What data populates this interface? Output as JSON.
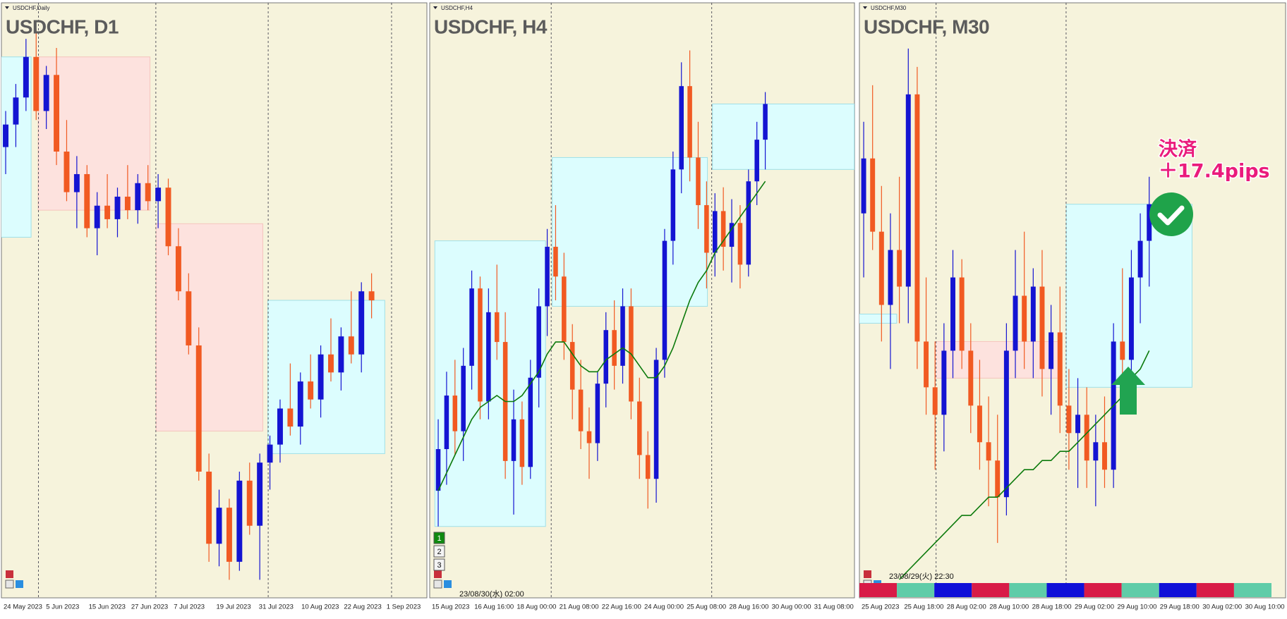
{
  "panels": [
    {
      "symbol": "USDCHF,Daily",
      "title": "USDCHF, D1",
      "ylim": [
        0.852,
        0.918
      ],
      "x_labels": [
        "24 May 2023",
        "5 Jun 2023",
        "15 Jun 2023",
        "27 Jun 2023",
        "7 Jul 2023",
        "19 Jul 2023",
        "31 Jul 2023",
        "10 Aug 2023",
        "22 Aug 2023",
        "1 Sep 2023"
      ],
      "candles": [
        [
          0.902,
          0.906,
          0.899,
          0.9045
        ],
        [
          0.9045,
          0.909,
          0.902,
          0.9075
        ],
        [
          0.9075,
          0.914,
          0.906,
          0.912
        ],
        [
          0.912,
          0.915,
          0.905,
          0.906
        ],
        [
          0.906,
          0.911,
          0.904,
          0.91
        ],
        [
          0.91,
          0.913,
          0.9,
          0.9015
        ],
        [
          0.9015,
          0.905,
          0.896,
          0.897
        ],
        [
          0.897,
          0.901,
          0.893,
          0.899
        ],
        [
          0.899,
          0.9,
          0.892,
          0.893
        ],
        [
          0.893,
          0.897,
          0.89,
          0.8955
        ],
        [
          0.8955,
          0.899,
          0.893,
          0.894
        ],
        [
          0.894,
          0.8975,
          0.892,
          0.8965
        ],
        [
          0.8965,
          0.9,
          0.894,
          0.895
        ],
        [
          0.895,
          0.899,
          0.8935,
          0.898
        ],
        [
          0.898,
          0.9,
          0.895,
          0.896
        ],
        [
          0.896,
          0.899,
          0.893,
          0.8975
        ],
        [
          0.8975,
          0.8985,
          0.89,
          0.891
        ],
        [
          0.891,
          0.893,
          0.885,
          0.886
        ],
        [
          0.886,
          0.888,
          0.879,
          0.88
        ],
        [
          0.88,
          0.882,
          0.865,
          0.866
        ],
        [
          0.866,
          0.868,
          0.856,
          0.858
        ],
        [
          0.858,
          0.864,
          0.8555,
          0.862
        ],
        [
          0.862,
          0.863,
          0.854,
          0.856
        ],
        [
          0.856,
          0.866,
          0.855,
          0.865
        ],
        [
          0.865,
          0.867,
          0.859,
          0.86
        ],
        [
          0.86,
          0.868,
          0.854,
          0.867
        ],
        [
          0.867,
          0.87,
          0.864,
          0.869
        ],
        [
          0.869,
          0.874,
          0.867,
          0.873
        ],
        [
          0.873,
          0.878,
          0.87,
          0.871
        ],
        [
          0.871,
          0.877,
          0.869,
          0.876
        ],
        [
          0.876,
          0.879,
          0.873,
          0.874
        ],
        [
          0.874,
          0.88,
          0.872,
          0.879
        ],
        [
          0.879,
          0.883,
          0.876,
          0.877
        ],
        [
          0.877,
          0.882,
          0.875,
          0.881
        ],
        [
          0.881,
          0.886,
          0.878,
          0.879
        ],
        [
          0.879,
          0.887,
          0.877,
          0.886
        ],
        [
          0.886,
          0.888,
          0.883,
          0.885
        ]
      ],
      "zones": [
        {
          "start": -0.5,
          "end": 2.5,
          "low": 0.892,
          "high": 0.912,
          "color": "#dcfdfe"
        },
        {
          "start": 3.2,
          "end": 14.2,
          "low": 0.895,
          "high": 0.912,
          "color": "#fde2de"
        },
        {
          "start": 14.8,
          "end": 25.3,
          "low": 0.8705,
          "high": 0.8935,
          "color": "#fde2de"
        },
        {
          "start": 25.8,
          "end": 37.3,
          "low": 0.868,
          "high": 0.885,
          "color": "#dcfdfe"
        }
      ]
    },
    {
      "symbol": "USDCHF,H4",
      "title": "USDCHF, H4",
      "ylim": [
        0.876,
        0.886
      ],
      "x_labels": [
        "15 Aug 2023",
        "16 Aug 16:00",
        "18 Aug 00:00",
        "21 Aug 08:00",
        "22 Aug 16:00",
        "24 Aug 00:00",
        "25 Aug 08:00",
        "28 Aug 16:00",
        "30 Aug 00:00",
        "31 Aug 08:00"
      ],
      "footer": "23/08/30(水) 02:00",
      "buttons": [
        "1",
        "2",
        "3"
      ],
      "candles": [
        [
          0.8778,
          0.879,
          0.8772,
          0.8785
        ],
        [
          0.8785,
          0.8798,
          0.8779,
          0.8794
        ],
        [
          0.8794,
          0.88,
          0.8784,
          0.8788
        ],
        [
          0.8788,
          0.8802,
          0.8783,
          0.8799
        ],
        [
          0.8799,
          0.8815,
          0.8795,
          0.8812
        ],
        [
          0.8812,
          0.8814,
          0.879,
          0.8793
        ],
        [
          0.8793,
          0.8812,
          0.879,
          0.8808
        ],
        [
          0.8808,
          0.8816,
          0.88,
          0.8803
        ],
        [
          0.8803,
          0.8808,
          0.878,
          0.8783
        ],
        [
          0.8783,
          0.8795,
          0.8774,
          0.879
        ],
        [
          0.879,
          0.8793,
          0.8779,
          0.8782
        ],
        [
          0.8782,
          0.88,
          0.878,
          0.8797
        ],
        [
          0.8797,
          0.8812,
          0.8792,
          0.8809
        ],
        [
          0.8809,
          0.8822,
          0.8804,
          0.8819
        ],
        [
          0.8819,
          0.8826,
          0.881,
          0.8814
        ],
        [
          0.8814,
          0.8818,
          0.88,
          0.8803
        ],
        [
          0.8803,
          0.8806,
          0.879,
          0.8795
        ],
        [
          0.8795,
          0.88,
          0.8785,
          0.8788
        ],
        [
          0.8788,
          0.8792,
          0.878,
          0.8786
        ],
        [
          0.8786,
          0.8798,
          0.8783,
          0.8796
        ],
        [
          0.8796,
          0.8808,
          0.8792,
          0.8805
        ],
        [
          0.8805,
          0.881,
          0.8795,
          0.8799
        ],
        [
          0.8799,
          0.8812,
          0.8796,
          0.8809
        ],
        [
          0.8809,
          0.8812,
          0.879,
          0.8793
        ],
        [
          0.8793,
          0.8797,
          0.878,
          0.8784
        ],
        [
          0.8784,
          0.8788,
          0.8775,
          0.878
        ],
        [
          0.878,
          0.8802,
          0.8776,
          0.88
        ],
        [
          0.88,
          0.8822,
          0.8797,
          0.882
        ],
        [
          0.882,
          0.8835,
          0.8816,
          0.8832
        ],
        [
          0.8832,
          0.885,
          0.8828,
          0.8846
        ],
        [
          0.8846,
          0.8852,
          0.883,
          0.8834
        ],
        [
          0.8834,
          0.884,
          0.8822,
          0.8826
        ],
        [
          0.8826,
          0.883,
          0.8812,
          0.8818
        ],
        [
          0.8818,
          0.8828,
          0.8814,
          0.8825
        ],
        [
          0.8825,
          0.8829,
          0.8815,
          0.8819
        ],
        [
          0.8819,
          0.8827,
          0.8813,
          0.8823
        ],
        [
          0.8823,
          0.8826,
          0.8812,
          0.8816
        ],
        [
          0.8816,
          0.8832,
          0.8814,
          0.883
        ],
        [
          0.883,
          0.884,
          0.8826,
          0.8837
        ],
        [
          0.8837,
          0.8845,
          0.8832,
          0.8843
        ]
      ],
      "ma": [
        0.8778,
        0.8781,
        0.8784,
        0.8787,
        0.879,
        0.8792,
        0.8793,
        0.8794,
        0.8793,
        0.8793,
        0.8794,
        0.8796,
        0.8798,
        0.8801,
        0.8803,
        0.8803,
        0.8801,
        0.8799,
        0.8798,
        0.8798,
        0.88,
        0.8801,
        0.8802,
        0.8801,
        0.8799,
        0.8797,
        0.8797,
        0.8799,
        0.8802,
        0.8806,
        0.881,
        0.8813,
        0.8815,
        0.8818,
        0.882,
        0.8822,
        0.8824,
        0.8826,
        0.8828,
        0.883
      ],
      "zones": [
        {
          "start": -0.4,
          "end": 12.8,
          "low": 0.8772,
          "high": 0.882,
          "color": "#dcfdfe"
        },
        {
          "start": 13.6,
          "end": 32.1,
          "low": 0.8809,
          "high": 0.8834,
          "color": "#dcfdfe"
        },
        {
          "start": 32.7,
          "end": 49.6,
          "low": 0.8832,
          "high": 0.8843,
          "color": "#dcfdfe"
        }
      ]
    },
    {
      "symbol": "USDCHF,M30",
      "title": "USDCHF, M30",
      "ylim": [
        0.877,
        0.8835
      ],
      "x_labels": [
        "25 Aug 2023",
        "25 Aug 18:00",
        "28 Aug 02:00",
        "28 Aug 10:00",
        "28 Aug 18:00",
        "29 Aug 02:00",
        "29 Aug 10:00",
        "29 Aug 18:00",
        "30 Aug 02:00",
        "30 Aug 10:00"
      ],
      "footer": "23/08/29(火) 22:30",
      "annotation": [
        "決済",
        "＋17.4pips"
      ],
      "candles": [
        [
          0.8812,
          0.8822,
          0.8805,
          0.8818
        ],
        [
          0.8818,
          0.8826,
          0.8808,
          0.881
        ],
        [
          0.881,
          0.8815,
          0.8798,
          0.8802
        ],
        [
          0.8802,
          0.8812,
          0.8795,
          0.8808
        ],
        [
          0.8808,
          0.8816,
          0.88,
          0.8804
        ],
        [
          0.8804,
          0.883,
          0.88,
          0.8825
        ],
        [
          0.8825,
          0.8828,
          0.8795,
          0.8798
        ],
        [
          0.8798,
          0.8805,
          0.879,
          0.8793
        ],
        [
          0.8793,
          0.8798,
          0.8784,
          0.879
        ],
        [
          0.879,
          0.88,
          0.8786,
          0.8797
        ],
        [
          0.8797,
          0.8808,
          0.8794,
          0.8805
        ],
        [
          0.8805,
          0.8807,
          0.8795,
          0.8797
        ],
        [
          0.8797,
          0.88,
          0.8788,
          0.8791
        ],
        [
          0.8791,
          0.8796,
          0.8784,
          0.8787
        ],
        [
          0.8787,
          0.8792,
          0.878,
          0.8785
        ],
        [
          0.8785,
          0.879,
          0.8776,
          0.8781
        ],
        [
          0.8781,
          0.88,
          0.8779,
          0.8797
        ],
        [
          0.8797,
          0.8808,
          0.8794,
          0.8803
        ],
        [
          0.8803,
          0.881,
          0.8795,
          0.8798
        ],
        [
          0.8798,
          0.8806,
          0.8794,
          0.8804
        ],
        [
          0.8804,
          0.8808,
          0.8792,
          0.8795
        ],
        [
          0.8795,
          0.8802,
          0.879,
          0.8799
        ],
        [
          0.8799,
          0.8804,
          0.8788,
          0.8791
        ],
        [
          0.8791,
          0.8795,
          0.8784,
          0.8788
        ],
        [
          0.8788,
          0.8794,
          0.8782,
          0.879
        ],
        [
          0.879,
          0.8793,
          0.8782,
          0.8785
        ],
        [
          0.8785,
          0.879,
          0.878,
          0.8787
        ],
        [
          0.8787,
          0.8792,
          0.8782,
          0.8784
        ],
        [
          0.8784,
          0.88,
          0.8782,
          0.8798
        ],
        [
          0.8798,
          0.8806,
          0.8793,
          0.8796
        ],
        [
          0.8796,
          0.8808,
          0.8794,
          0.8805
        ],
        [
          0.8805,
          0.8812,
          0.88,
          0.8809
        ],
        [
          0.8809,
          0.8816,
          0.8804,
          0.8813
        ]
      ],
      "ma": [
        null,
        null,
        null,
        null,
        0.8772,
        0.8773,
        0.8774,
        0.8775,
        0.8776,
        0.8777,
        0.8778,
        0.8779,
        0.8779,
        0.878,
        0.8781,
        0.8781,
        0.8782,
        0.8783,
        0.8784,
        0.8784,
        0.8785,
        0.8785,
        0.8786,
        0.8786,
        0.8787,
        0.8788,
        0.8789,
        0.879,
        0.8791,
        0.8792,
        0.8794,
        0.8795,
        0.8797
      ],
      "zones": [
        {
          "start": -0.5,
          "end": 3.7,
          "low": 0.88,
          "high": 0.8801,
          "color": "#dcfdfe"
        },
        {
          "start": 8.0,
          "end": 22.0,
          "low": 0.8794,
          "high": 0.8798,
          "color": "#fde2de"
        },
        {
          "start": 22.7,
          "end": 36.8,
          "low": 0.8793,
          "high": 0.8813,
          "color": "#dcfdfe"
        }
      ]
    }
  ]
}
